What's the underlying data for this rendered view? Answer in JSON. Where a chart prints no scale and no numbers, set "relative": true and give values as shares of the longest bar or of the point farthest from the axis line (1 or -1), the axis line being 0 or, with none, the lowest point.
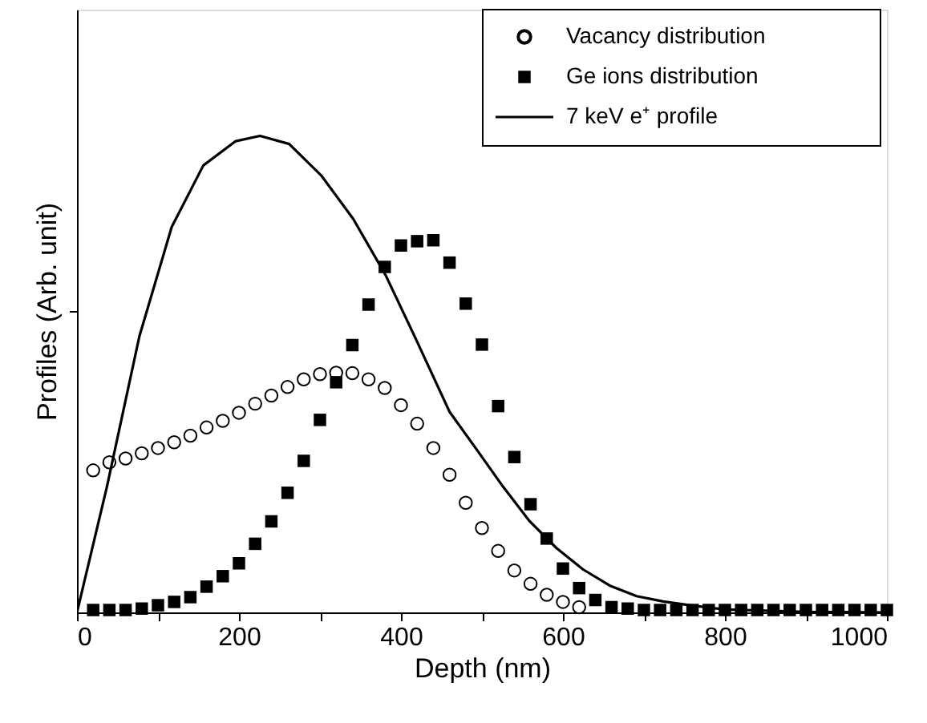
{
  "chart_data": {
    "type": "scatter",
    "xlabel": "Depth (nm)",
    "ylabel": "Profiles (Arb. unit)",
    "relative": true,
    "xlim": [
      0,
      1000
    ],
    "xticks": [
      0,
      {
        "value": 100,
        "label": null
      },
      200,
      {
        "value": 300,
        "label": null
      },
      400,
      {
        "value": 500,
        "label": null
      },
      600,
      {
        "value": 700,
        "label": null
      },
      800,
      {
        "value": 900,
        "label": null
      },
      1000
    ],
    "tick_labels": "x",
    "grid": false,
    "legend": "top right",
    "series": [
      {
        "name": "Vacancy distribution",
        "marker": "circle",
        "color": "#000000",
        "x": [
          20,
          40,
          60,
          80,
          100,
          120,
          140,
          160,
          180,
          200,
          220,
          240,
          260,
          280,
          300,
          320,
          340,
          360,
          380,
          400,
          420,
          440,
          460,
          480,
          500,
          520,
          540,
          560,
          580,
          600,
          620
        ],
        "values": [
          0.298,
          0.315,
          0.323,
          0.334,
          0.345,
          0.357,
          0.371,
          0.388,
          0.402,
          0.419,
          0.438,
          0.455,
          0.473,
          0.489,
          0.5,
          0.503,
          0.502,
          0.489,
          0.471,
          0.435,
          0.396,
          0.345,
          0.289,
          0.23,
          0.177,
          0.129,
          0.088,
          0.06,
          0.037,
          0.022,
          0.011
        ]
      },
      {
        "name": "Ge ions distribution",
        "marker": "square",
        "color": "#000000",
        "x": [
          20,
          40,
          60,
          80,
          100,
          120,
          140,
          160,
          180,
          200,
          220,
          240,
          260,
          280,
          300,
          320,
          340,
          360,
          380,
          400,
          420,
          440,
          460,
          480,
          500,
          520,
          540,
          560,
          580,
          600,
          620,
          640,
          660,
          680,
          700,
          720,
          740,
          760,
          780,
          800,
          820,
          840,
          860,
          880,
          900,
          920,
          940,
          960,
          980,
          1000
        ],
        "values": [
          0.005,
          0.005,
          0.005,
          0.008,
          0.015,
          0.022,
          0.032,
          0.054,
          0.076,
          0.103,
          0.144,
          0.191,
          0.251,
          0.318,
          0.404,
          0.483,
          0.561,
          0.646,
          0.725,
          0.77,
          0.779,
          0.781,
          0.734,
          0.648,
          0.562,
          0.433,
          0.326,
          0.227,
          0.155,
          0.092,
          0.051,
          0.026,
          0.011,
          0.008,
          0.005,
          0.005,
          0.005,
          0.005,
          0.005,
          0.005,
          0.005,
          0.005,
          0.005,
          0.005,
          0.005,
          0.005,
          0.005,
          0.005,
          0.005,
          0.005
        ]
      },
      {
        "name": "7 keV e⁺ profile",
        "type": "line",
        "marker": "none",
        "line_style": "solid",
        "color": "#000000",
        "x": [
          0,
          37,
          77,
          117,
          156,
          196,
          226,
          262,
          302,
          341,
          381,
          420,
          460,
          493,
          526,
          559,
          592,
          625,
          658,
          691,
          724,
          757,
          800,
          900,
          1000
        ],
        "values": [
          0,
          0.264,
          0.579,
          0.809,
          0.938,
          0.989,
          1,
          0.983,
          0.916,
          0.826,
          0.708,
          0.568,
          0.421,
          0.343,
          0.264,
          0.191,
          0.135,
          0.09,
          0.056,
          0.034,
          0.023,
          0.015,
          0.006,
          0.001,
          0
        ]
      }
    ]
  }
}
